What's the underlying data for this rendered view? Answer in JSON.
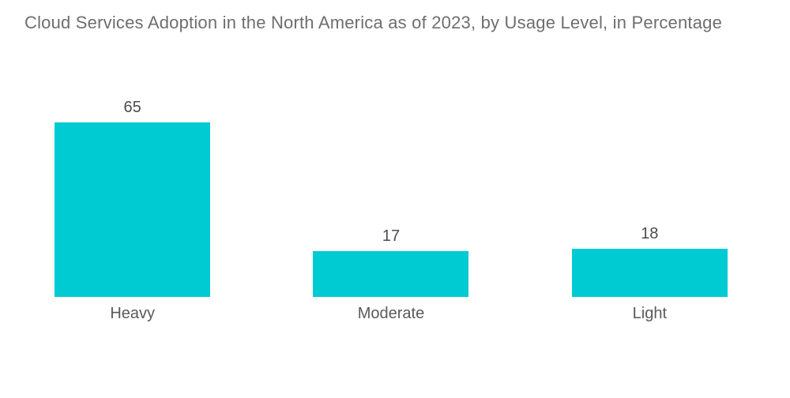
{
  "chart_data": {
    "type": "bar",
    "title": "Cloud Services Adoption in the North America as of 2023, by Usage Level, in Percentage",
    "categories": [
      "Heavy",
      "Moderate",
      "Light"
    ],
    "values": [
      65,
      17,
      18
    ],
    "xlabel": "",
    "ylabel": "",
    "ylim": [
      0,
      65
    ],
    "grid": false,
    "legend": false,
    "bar_color": "#00CBD2",
    "title_color": "#6e6e6e",
    "label_color": "#5a5a5a",
    "value_color": "#4c4c4c",
    "background_color": "#ffffff"
  }
}
